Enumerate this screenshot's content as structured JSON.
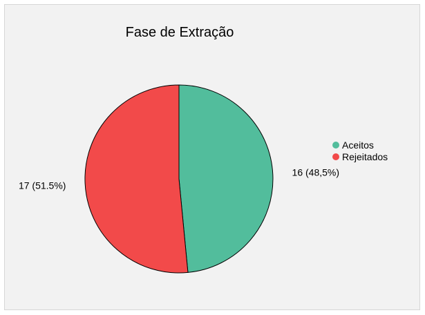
{
  "chart_data": {
    "type": "pie",
    "title": "Fase de Extração",
    "start_angle_deg": 0,
    "direction": "clockwise",
    "legend_position": "right",
    "slices": [
      {
        "name": "Aceitos",
        "value": 16,
        "label": "16 (48,5%)",
        "color": "#52bd9c"
      },
      {
        "name": "Rejeitados",
        "value": 17,
        "label": "17 (51.5%)",
        "color": "#f24a4a"
      }
    ]
  }
}
